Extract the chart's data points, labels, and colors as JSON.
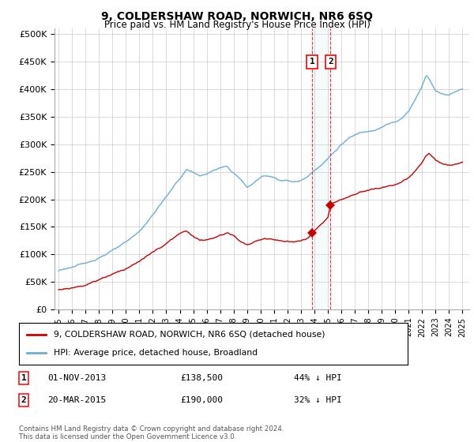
{
  "title": "9, COLDERSHAW ROAD, NORWICH, NR6 6SQ",
  "subtitle": "Price paid vs. HM Land Registry's House Price Index (HPI)",
  "ylabel_ticks": [
    "£0",
    "£50K",
    "£100K",
    "£150K",
    "£200K",
    "£250K",
    "£300K",
    "£350K",
    "£400K",
    "£450K",
    "£500K"
  ],
  "ytick_values": [
    0,
    50000,
    100000,
    150000,
    200000,
    250000,
    300000,
    350000,
    400000,
    450000,
    500000
  ],
  "ylim": [
    0,
    510000
  ],
  "xlim_start": 1994.7,
  "xlim_end": 2025.5,
  "hpi_color": "#6baed6",
  "price_color": "#cc0000",
  "sale1_date": 2013.83,
  "sale1_price": 138500,
  "sale2_date": 2015.2,
  "sale2_price": 190000,
  "legend_address": "9, COLDERSHAW ROAD, NORWICH, NR6 6SQ (detached house)",
  "legend_hpi": "HPI: Average price, detached house, Broadland",
  "annotation1_label": "1",
  "annotation1_date": "01-NOV-2013",
  "annotation1_price": "£138,500",
  "annotation1_pct": "44% ↓ HPI",
  "annotation2_label": "2",
  "annotation2_date": "20-MAR-2015",
  "annotation2_price": "£190,000",
  "annotation2_pct": "32% ↓ HPI",
  "footnote": "Contains HM Land Registry data © Crown copyright and database right 2024.\nThis data is licensed under the Open Government Licence v3.0.",
  "background_color": "#ffffff",
  "grid_color": "#cccccc"
}
